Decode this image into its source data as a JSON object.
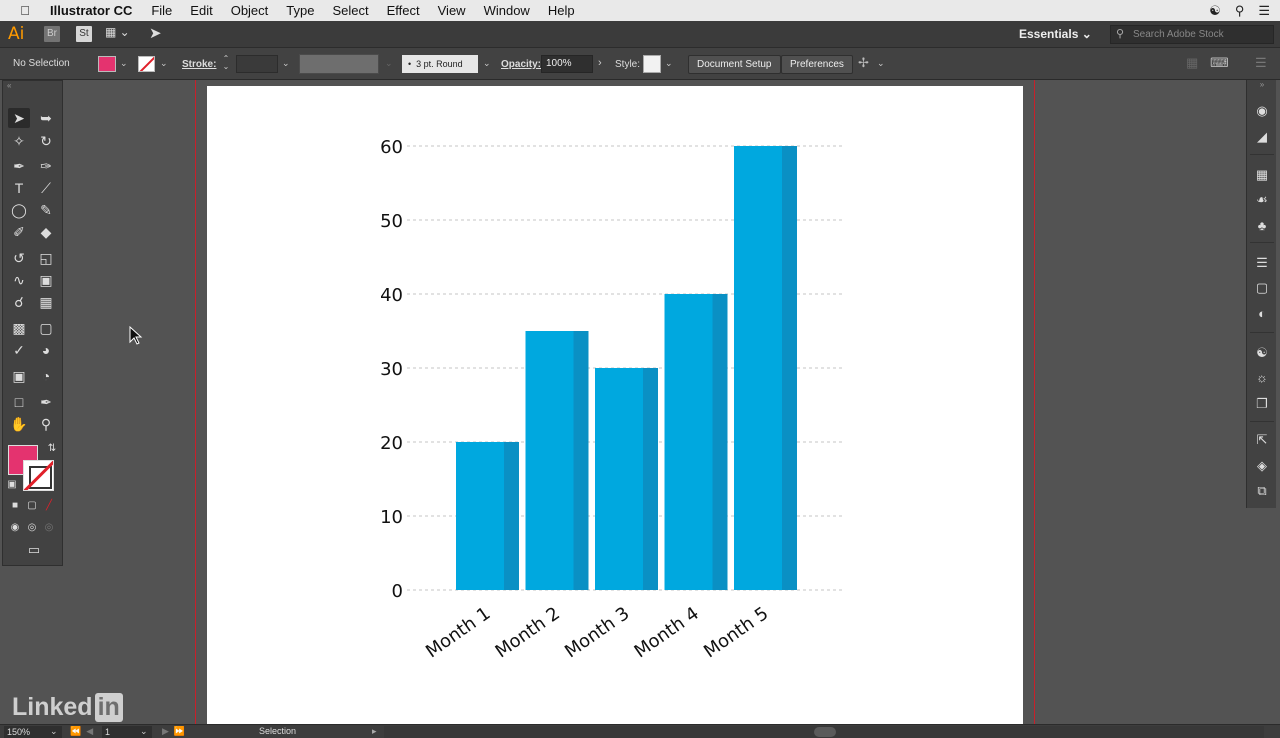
{
  "menubar": {
    "app_name": "Illustrator CC",
    "items": [
      "File",
      "Edit",
      "Object",
      "Type",
      "Select",
      "Effect",
      "View",
      "Window",
      "Help"
    ]
  },
  "appbar": {
    "logo": "Ai",
    "bridge": "Br",
    "stock": "St",
    "workspace": "Essentials",
    "search_placeholder": "Search Adobe Stock"
  },
  "control": {
    "selection": "No Selection",
    "stroke_label": "Stroke:",
    "brush": "3 pt. Round",
    "opacity_label": "Opacity:",
    "opacity_value": "100%",
    "style_label": "Style:",
    "document_setup": "Document Setup",
    "preferences": "Preferences",
    "fill_color": "#e4336f"
  },
  "status": {
    "zoom": "150%",
    "artboard": "1",
    "tool": "Selection"
  },
  "watermark": {
    "text": "Linked",
    "suffix": "in"
  },
  "chart_data": {
    "type": "bar",
    "categories": [
      "Month 1",
      "Month 2",
      "Month 3",
      "Month 4",
      "Month 5"
    ],
    "values": [
      20,
      35,
      30,
      40,
      60
    ],
    "yticks": [
      "0",
      "10",
      "20",
      "30",
      "40",
      "50",
      "60"
    ],
    "ylim": [
      0,
      60
    ],
    "grid": true,
    "bar_color": "#00a8df",
    "bar_shade_color": "#0a90c4"
  }
}
